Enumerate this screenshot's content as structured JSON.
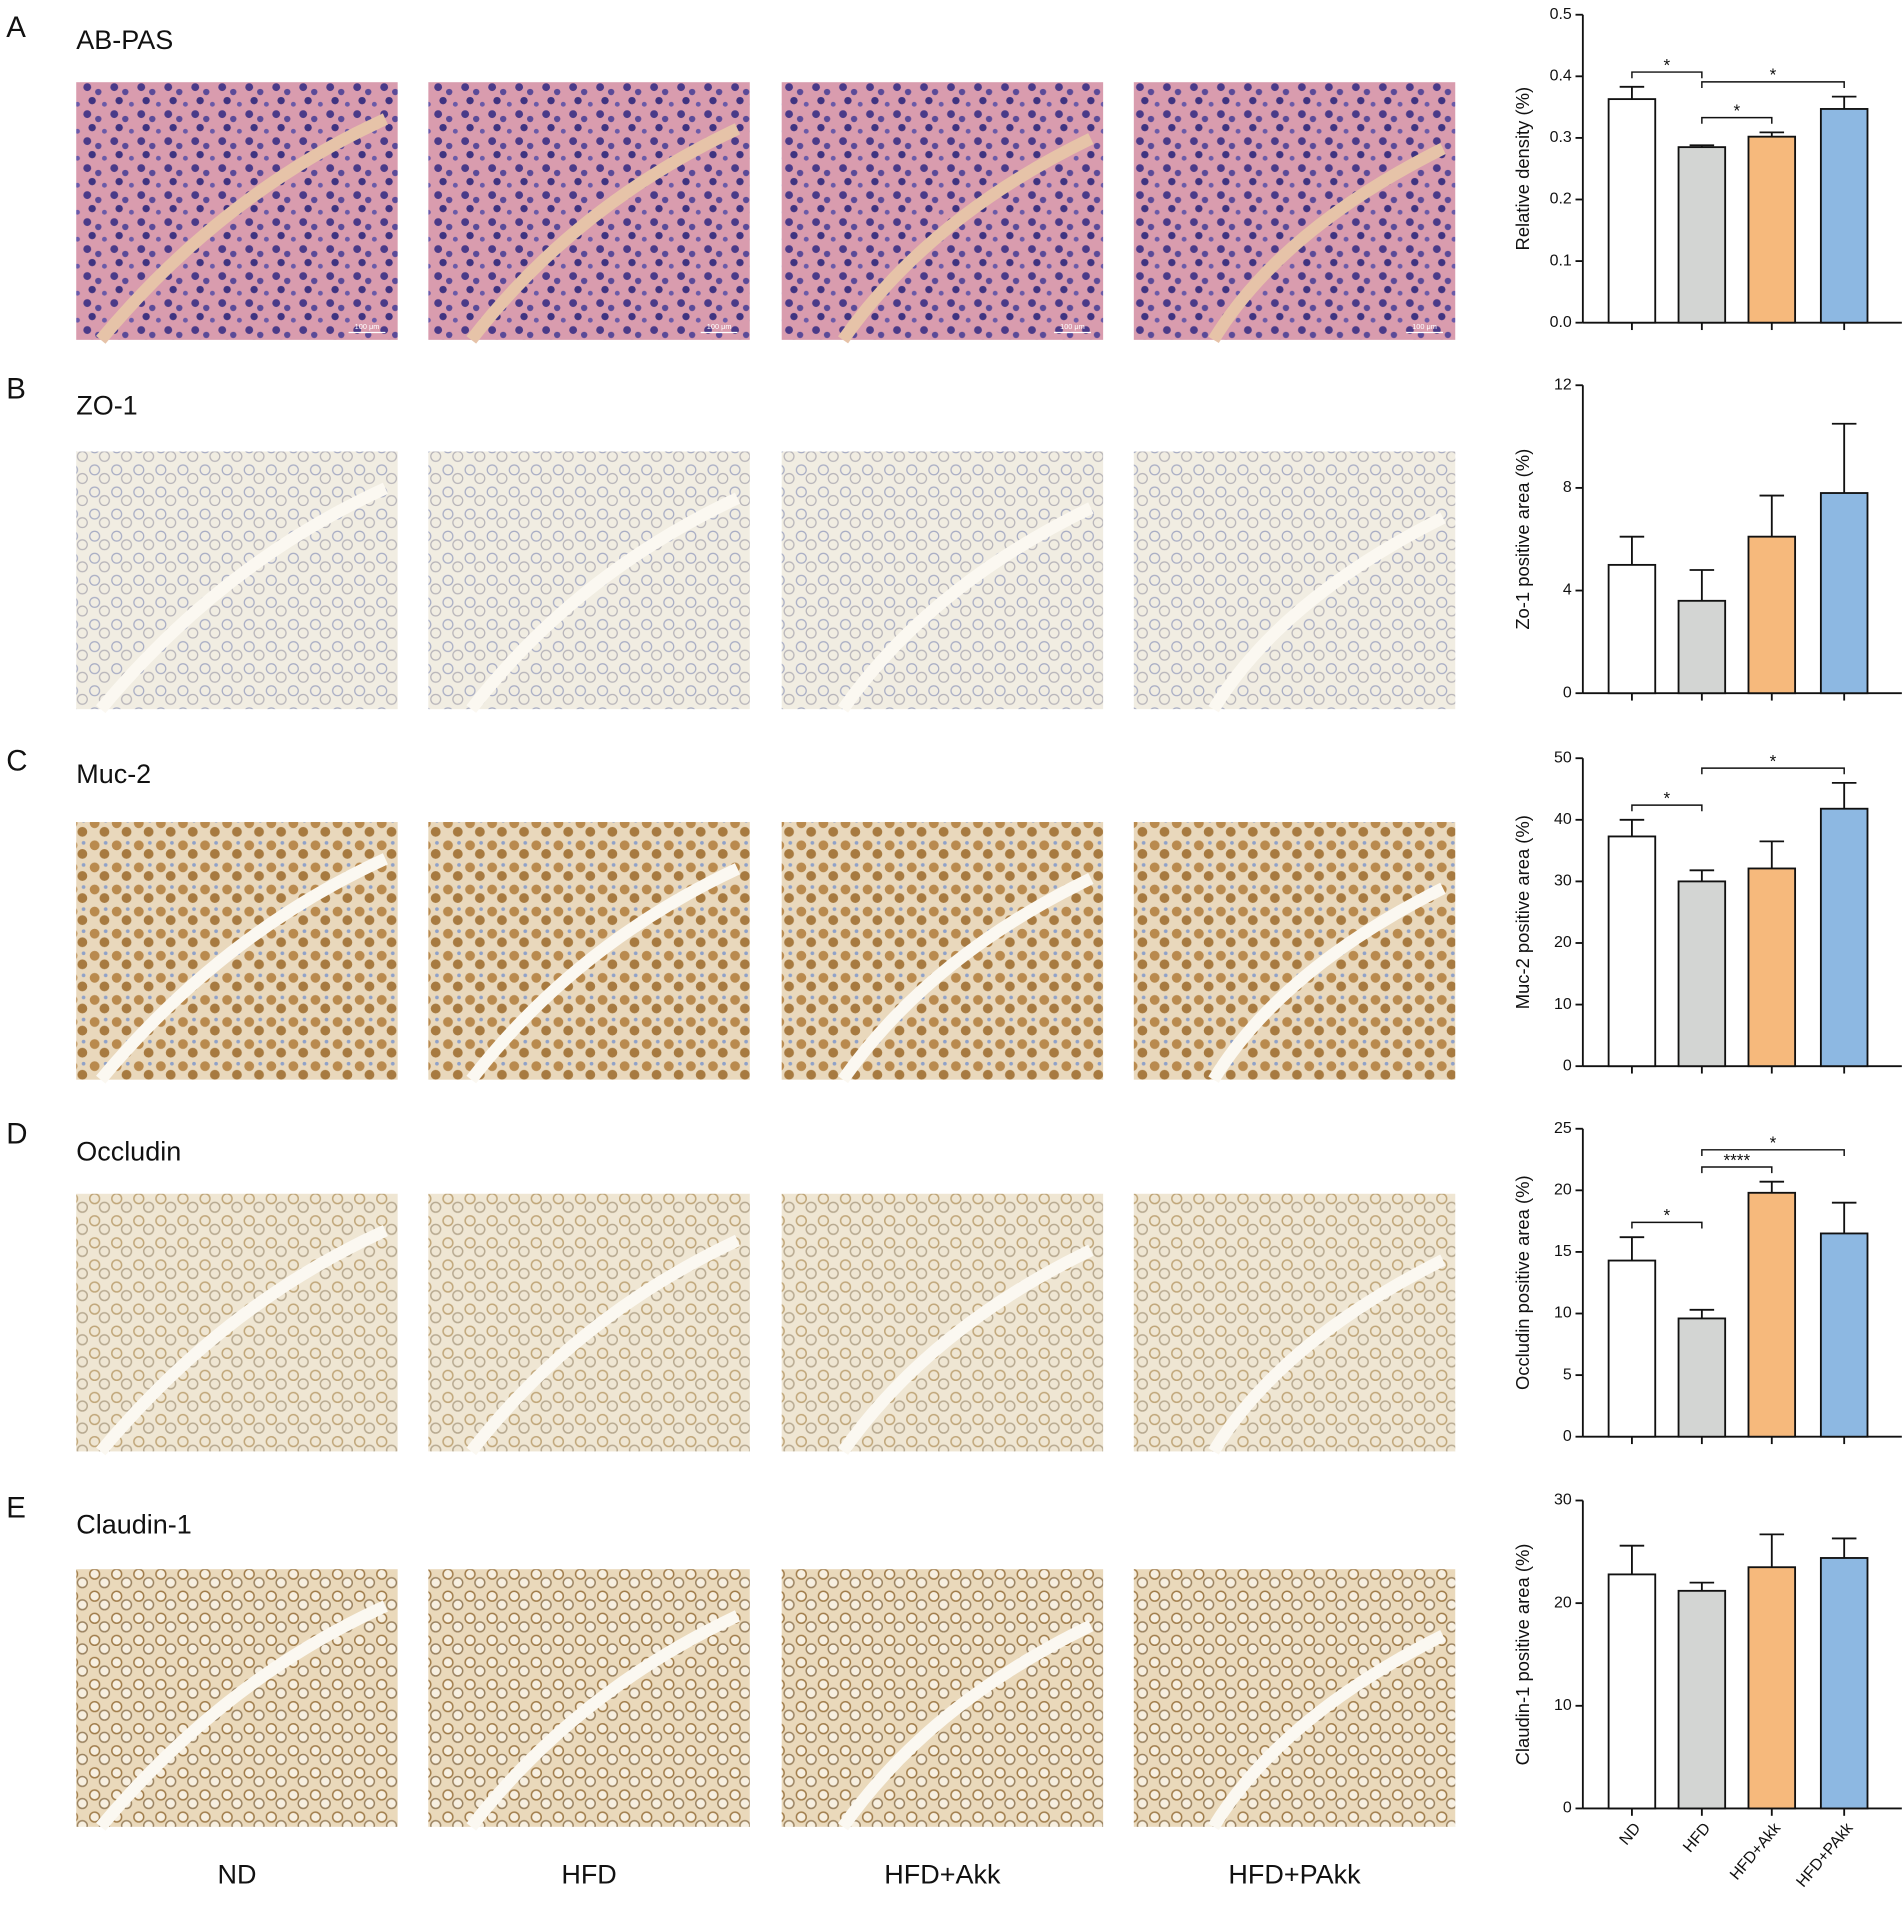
{
  "panels": [
    {
      "letter": "A",
      "label": "AB-PAS",
      "scale_bar": "100 μm"
    },
    {
      "letter": "B",
      "label": "ZO-1"
    },
    {
      "letter": "C",
      "label": "Muc-2"
    },
    {
      "letter": "D",
      "label": "Occludin"
    },
    {
      "letter": "E",
      "label": "Claudin-1"
    }
  ],
  "columns": [
    "ND",
    "HFD",
    "HFD+Akk",
    "HFD+PAkk"
  ],
  "chart_data": [
    {
      "type": "bar",
      "y_label": "Relative density (%)",
      "values": [
        0.363,
        0.285,
        0.302,
        0.347
      ],
      "errors": [
        0.02,
        0.003,
        0.007,
        0.02
      ],
      "colors": [
        "#ffffff",
        "#d3d5d3",
        "#f6b97c",
        "#8db8e2"
      ],
      "ylim": [
        0,
        0.5
      ],
      "yticks": [
        {
          "value": 0,
          "label": "0.0"
        },
        0.1,
        0.2,
        0.3,
        0.4,
        0.5
      ],
      "significance": [
        {
          "from": 0,
          "to": 1,
          "label": "*"
        },
        {
          "from": 1,
          "to": 3,
          "label": "*"
        },
        {
          "from": 1,
          "to": 2,
          "label": "*"
        }
      ]
    },
    {
      "type": "bar",
      "y_label": "Zo-1 positive area (%)",
      "values": [
        5.0,
        3.6,
        6.1,
        7.8
      ],
      "errors": [
        1.1,
        1.2,
        1.6,
        2.7
      ],
      "colors": [
        "#ffffff",
        "#d3d5d3",
        "#f6b97c",
        "#8db8e2"
      ],
      "ylim": [
        0,
        12
      ],
      "yticks": [
        0,
        4,
        8,
        12
      ],
      "significance": []
    },
    {
      "type": "bar",
      "y_label": "Muc-2 positive area (%)",
      "values": [
        37.3,
        30.0,
        32.1,
        41.8
      ],
      "errors": [
        2.7,
        1.8,
        4.4,
        4.2
      ],
      "colors": [
        "#ffffff",
        "#d3d5d3",
        "#f6b97c",
        "#8db8e2"
      ],
      "ylim": [
        0,
        50
      ],
      "yticks": [
        0,
        10,
        20,
        30,
        40,
        50
      ],
      "significance": [
        {
          "from": 0,
          "to": 1,
          "label": "*"
        },
        {
          "from": 1,
          "to": 3,
          "label": "*"
        }
      ]
    },
    {
      "type": "bar",
      "y_label": "Occludin positive area (%)",
      "values": [
        14.3,
        9.6,
        19.8,
        16.5
      ],
      "errors": [
        1.9,
        0.7,
        0.9,
        2.5
      ],
      "colors": [
        "#ffffff",
        "#d3d5d3",
        "#f6b97c",
        "#8db8e2"
      ],
      "ylim": [
        0,
        25
      ],
      "yticks": [
        0,
        5,
        10,
        15,
        20,
        25
      ],
      "significance": [
        {
          "from": 0,
          "to": 1,
          "label": "*"
        },
        {
          "from": 1,
          "to": 2,
          "label": "****"
        },
        {
          "from": 1,
          "to": 3,
          "label": "*"
        }
      ]
    },
    {
      "type": "bar",
      "y_label": "Claudin-1 positive area (%)",
      "categories": [
        "ND",
        "HFD",
        "HFD+Akk",
        "HFD+PAkk"
      ],
      "values": [
        22.8,
        21.2,
        23.5,
        24.4
      ],
      "errors": [
        2.8,
        0.8,
        3.2,
        1.9
      ],
      "colors": [
        "#ffffff",
        "#d3d5d3",
        "#f6b97c",
        "#8db8e2"
      ],
      "ylim": [
        0,
        30
      ],
      "yticks": [
        0,
        10,
        20,
        30
      ],
      "significance": []
    }
  ]
}
